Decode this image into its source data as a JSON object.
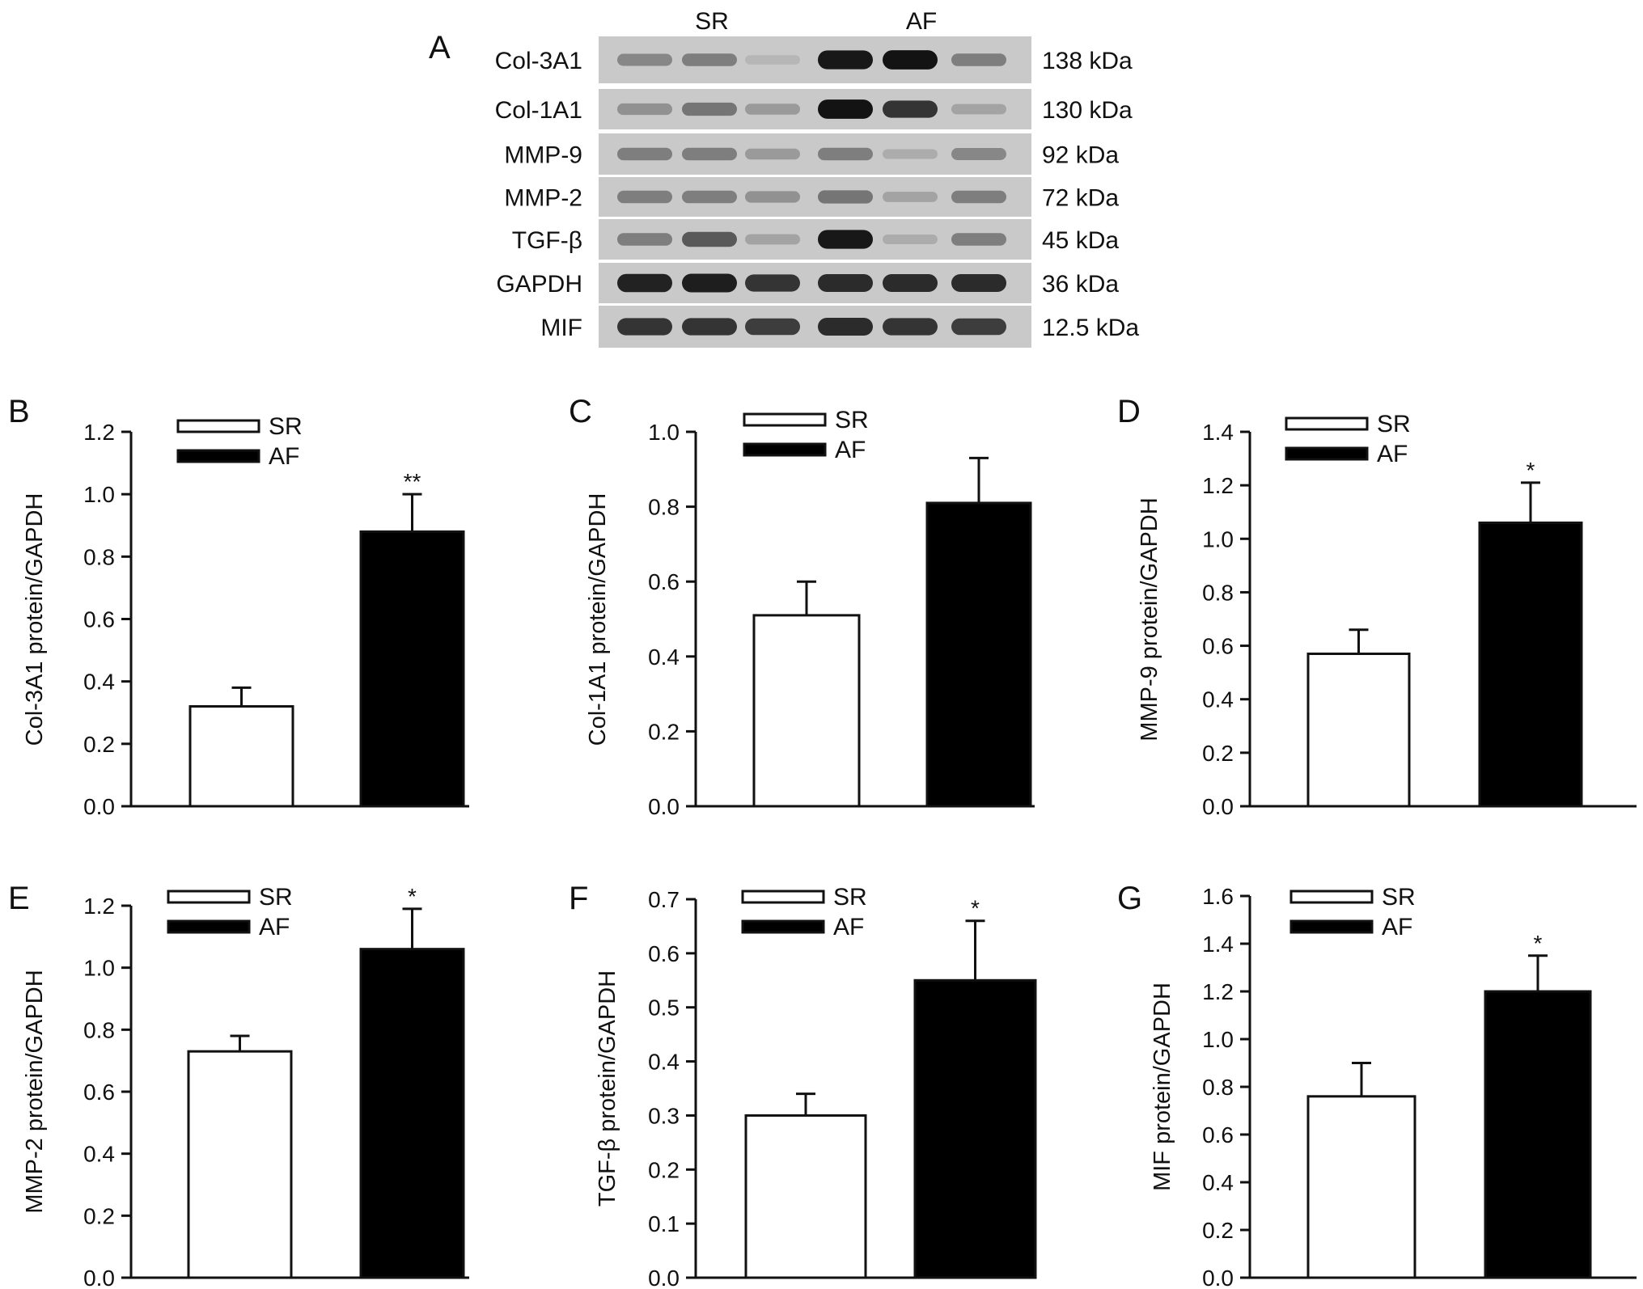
{
  "blot": {
    "panel_letter": "A",
    "groups": [
      "SR",
      "AF"
    ],
    "rows": [
      {
        "label": "Col-3A1",
        "kda": "138 kDa",
        "intensity": [
          0.35,
          0.4,
          0.1,
          0.95,
          0.98,
          0.4
        ]
      },
      {
        "label": "Col-1A1",
        "kda": "130 kDa",
        "intensity": [
          0.3,
          0.45,
          0.25,
          0.98,
          0.8,
          0.2
        ]
      },
      {
        "label": "MMP-9",
        "kda": "92 kDa",
        "intensity": [
          0.4,
          0.4,
          0.25,
          0.4,
          0.15,
          0.35
        ]
      },
      {
        "label": "MMP-2",
        "kda": "72 kDa",
        "intensity": [
          0.4,
          0.4,
          0.3,
          0.45,
          0.2,
          0.4
        ]
      },
      {
        "label": "TGF-β",
        "kda": "45 kDa",
        "intensity": [
          0.4,
          0.6,
          0.2,
          0.95,
          0.15,
          0.4
        ]
      },
      {
        "label": "GAPDH",
        "kda": "36 kDa",
        "intensity": [
          0.9,
          0.92,
          0.8,
          0.85,
          0.85,
          0.85
        ]
      },
      {
        "label": "MIF",
        "kda": "12.5 kDa",
        "intensity": [
          0.8,
          0.8,
          0.75,
          0.85,
          0.8,
          0.75
        ]
      }
    ]
  },
  "chart_data": [
    {
      "letter": "B",
      "type": "bar",
      "ylabel": "Col-3A1 protein/GAPDH",
      "ylim": [
        0,
        1.2
      ],
      "ticks": [
        "0.0",
        "0.2",
        "0.4",
        "0.6",
        "0.8",
        "1.0",
        "1.2"
      ],
      "categories": [
        "SR",
        "AF"
      ],
      "values": [
        0.32,
        0.88
      ],
      "errors": [
        0.06,
        0.12
      ],
      "annotations": [
        "",
        "**"
      ],
      "legend": [
        "SR",
        "AF"
      ],
      "legend_position": "top-left",
      "colors": [
        "#ffffff",
        "#000000"
      ]
    },
    {
      "letter": "C",
      "type": "bar",
      "ylabel": "Col-1A1 protein/GAPDH",
      "ylim": [
        0,
        1.0
      ],
      "ticks": [
        "0.0",
        "0.2",
        "0.4",
        "0.6",
        "0.8",
        "1.0"
      ],
      "categories": [
        "SR",
        "AF"
      ],
      "values": [
        0.51,
        0.81
      ],
      "errors": [
        0.09,
        0.12
      ],
      "annotations": [
        "",
        ""
      ],
      "legend": [
        "SR",
        "AF"
      ],
      "legend_position": "top-left",
      "colors": [
        "#ffffff",
        "#000000"
      ]
    },
    {
      "letter": "D",
      "type": "bar",
      "ylabel": "MMP-9 protein/GAPDH",
      "ylim": [
        0,
        1.4
      ],
      "ticks": [
        "0.0",
        "0.2",
        "0.4",
        "0.6",
        "0.8",
        "1.0",
        "1.2",
        "1.4"
      ],
      "categories": [
        "SR",
        "AF"
      ],
      "values": [
        0.57,
        1.06
      ],
      "errors": [
        0.09,
        0.15
      ],
      "annotations": [
        "",
        "*"
      ],
      "legend": [
        "SR",
        "AF"
      ],
      "legend_position": "top-left",
      "colors": [
        "#ffffff",
        "#000000"
      ]
    },
    {
      "letter": "E",
      "type": "bar",
      "ylabel": "MMP-2 protein/GAPDH",
      "ylim": [
        0,
        1.2
      ],
      "ticks": [
        "0.0",
        "0.2",
        "0.4",
        "0.6",
        "0.8",
        "1.0",
        "1.2"
      ],
      "categories": [
        "SR",
        "AF"
      ],
      "values": [
        0.73,
        1.06
      ],
      "errors": [
        0.05,
        0.13
      ],
      "annotations": [
        "",
        "*"
      ],
      "legend": [
        "SR",
        "AF"
      ],
      "legend_position": "top-left",
      "colors": [
        "#ffffff",
        "#000000"
      ]
    },
    {
      "letter": "F",
      "type": "bar",
      "ylabel": "TGF-β protein/GAPDH",
      "ylim": [
        0,
        0.7
      ],
      "ticks": [
        "0.0",
        "0.1",
        "0.2",
        "0.3",
        "0.4",
        "0.5",
        "0.6",
        "0.7"
      ],
      "categories": [
        "SR",
        "AF"
      ],
      "values": [
        0.3,
        0.55
      ],
      "errors": [
        0.04,
        0.11
      ],
      "annotations": [
        "",
        "*"
      ],
      "legend": [
        "SR",
        "AF"
      ],
      "legend_position": "top-left",
      "colors": [
        "#ffffff",
        "#000000"
      ]
    },
    {
      "letter": "G",
      "type": "bar",
      "ylabel": "MIF protein/GAPDH",
      "ylim": [
        0,
        1.6
      ],
      "ticks": [
        "0.0",
        "0.2",
        "0.4",
        "0.6",
        "0.8",
        "1.0",
        "1.2",
        "1.4",
        "1.6"
      ],
      "categories": [
        "SR",
        "AF"
      ],
      "values": [
        0.76,
        1.2
      ],
      "errors": [
        0.14,
        0.15
      ],
      "annotations": [
        "",
        "*"
      ],
      "legend": [
        "SR",
        "AF"
      ],
      "legend_position": "top-left",
      "colors": [
        "#ffffff",
        "#000000"
      ]
    }
  ]
}
